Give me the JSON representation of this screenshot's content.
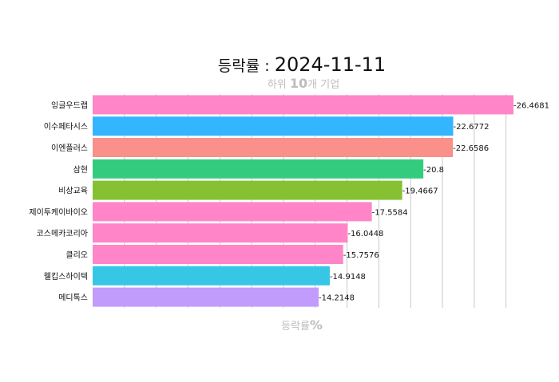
{
  "title": {
    "prefix": "등락률 : ",
    "date": "2024-11-11"
  },
  "subtitle": {
    "pre": "하위 ",
    "num": "10",
    "post": "개 기업"
  },
  "xaxis": {
    "pre": "등락률",
    "unit": "%"
  },
  "colors": {
    "title": "#111111",
    "subtitle": "#bdbdbd",
    "axis_label": "#bdbdbd",
    "grid": "#bdbdbd"
  },
  "chart_data": {
    "type": "bar",
    "orientation": "horizontal",
    "title": "등락률 : 2024-11-11",
    "subtitle": "하위 10개 기업",
    "xlabel": "등락률%",
    "ylabel": "",
    "xlim": [
      -30,
      0
    ],
    "grid": true,
    "legend": "none",
    "categories": [
      "잉글우드랩",
      "이수페타시스",
      "이엔플러스",
      "삼현",
      "비상교육",
      "제이투케이바이오",
      "코스메카코리아",
      "클리오",
      "웰킵스하이텍",
      "메디톡스"
    ],
    "values": [
      -26.4681,
      -22.6772,
      -22.6586,
      -20.8,
      -19.4667,
      -17.5584,
      -16.0448,
      -15.7576,
      -14.9148,
      -14.2148
    ],
    "value_labels": [
      "-26.4681",
      "-22.6772",
      "-22.6586",
      "-20.8",
      "-19.4667",
      "-17.5584",
      "-16.0448",
      "-15.7576",
      "-14.9148",
      "-14.2148"
    ],
    "bar_colors": [
      "#ff85c8",
      "#33b5ff",
      "#f99089",
      "#33cc7f",
      "#85c132",
      "#ff85c8",
      "#ff85c8",
      "#ff85c8",
      "#36c7e6",
      "#c19cfc"
    ]
  }
}
